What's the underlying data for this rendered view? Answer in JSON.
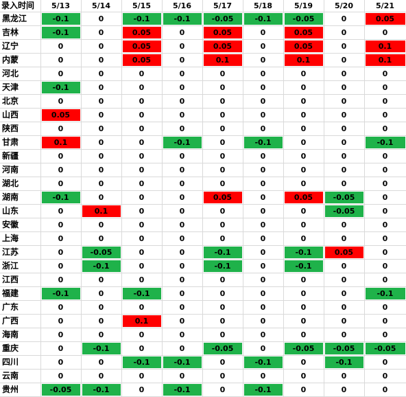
{
  "header": {
    "corner": "录入时间",
    "dates": [
      "5/13",
      "5/14",
      "5/15",
      "5/16",
      "5/17",
      "5/18",
      "5/19",
      "5/20",
      "5/21"
    ]
  },
  "colors": {
    "increase": "#ff0000",
    "decrease": "#1fb24a"
  },
  "rows": [
    {
      "region": "黑龙江",
      "values": [
        "-0.1",
        "0",
        "-0.1",
        "-0.1",
        "-0.05",
        "-0.1",
        "-0.05",
        "0",
        "0.05"
      ]
    },
    {
      "region": "吉林",
      "values": [
        "-0.1",
        "0",
        "0.05",
        "0",
        "0.05",
        "0",
        "0.05",
        "0",
        "0"
      ]
    },
    {
      "region": "辽宁",
      "values": [
        "0",
        "0",
        "0.05",
        "0",
        "0.05",
        "0",
        "0.05",
        "0",
        "0.1"
      ]
    },
    {
      "region": "内蒙",
      "values": [
        "0",
        "0",
        "0.05",
        "0",
        "0.1",
        "0",
        "0.1",
        "0",
        "0.1"
      ]
    },
    {
      "region": "河北",
      "values": [
        "0",
        "0",
        "0",
        "0",
        "0",
        "0",
        "0",
        "0",
        "0"
      ]
    },
    {
      "region": "天津",
      "values": [
        "-0.1",
        "0",
        "0",
        "0",
        "0",
        "0",
        "0",
        "0",
        "0"
      ]
    },
    {
      "region": "北京",
      "values": [
        "0",
        "0",
        "0",
        "0",
        "0",
        "0",
        "0",
        "0",
        "0"
      ]
    },
    {
      "region": "山西",
      "values": [
        "0.05",
        "0",
        "0",
        "0",
        "0",
        "0",
        "0",
        "0",
        "0"
      ]
    },
    {
      "region": "陕西",
      "values": [
        "0",
        "0",
        "0",
        "0",
        "0",
        "0",
        "0",
        "0",
        "0"
      ]
    },
    {
      "region": "甘肃",
      "values": [
        "0.1",
        "0",
        "0",
        "-0.1",
        "0",
        "-0.1",
        "0",
        "0",
        "-0.1"
      ]
    },
    {
      "region": "新疆",
      "values": [
        "0",
        "0",
        "0",
        "0",
        "0",
        "0",
        "0",
        "0",
        "0"
      ]
    },
    {
      "region": "河南",
      "values": [
        "0",
        "0",
        "0",
        "0",
        "0",
        "0",
        "0",
        "0",
        "0"
      ]
    },
    {
      "region": "湖北",
      "values": [
        "0",
        "0",
        "0",
        "0",
        "0",
        "0",
        "0",
        "0",
        "0"
      ]
    },
    {
      "region": "湖南",
      "values": [
        "-0.1",
        "0",
        "0",
        "0",
        "0.05",
        "0",
        "0.05",
        "-0.05",
        "0"
      ]
    },
    {
      "region": "山东",
      "values": [
        "0",
        "0.1",
        "0",
        "0",
        "0",
        "0",
        "0",
        "-0.05",
        "0"
      ]
    },
    {
      "region": "安徽",
      "values": [
        "0",
        "0",
        "0",
        "0",
        "0",
        "0",
        "0",
        "0",
        "0"
      ]
    },
    {
      "region": "上海",
      "values": [
        "0",
        "0",
        "0",
        "0",
        "0",
        "0",
        "0",
        "0",
        "0"
      ]
    },
    {
      "region": "江苏",
      "values": [
        "0",
        "-0.05",
        "0",
        "0",
        "-0.1",
        "0",
        "-0.1",
        "0.05",
        "0"
      ]
    },
    {
      "region": "浙江",
      "values": [
        "0",
        "-0.1",
        "0",
        "0",
        "-0.1",
        "0",
        "-0.1",
        "0",
        "0"
      ]
    },
    {
      "region": "江西",
      "values": [
        "0",
        "0",
        "0",
        "0",
        "0",
        "0",
        "0",
        "0",
        "0"
      ]
    },
    {
      "region": "福建",
      "values": [
        "-0.1",
        "0",
        "-0.1",
        "0",
        "0",
        "0",
        "0",
        "0",
        "-0.1"
      ]
    },
    {
      "region": "广东",
      "values": [
        "0",
        "0",
        "0",
        "0",
        "0",
        "0",
        "0",
        "0",
        "0"
      ]
    },
    {
      "region": "广西",
      "values": [
        "0",
        "0",
        "0.1",
        "0",
        "0",
        "0",
        "0",
        "0",
        "0"
      ]
    },
    {
      "region": "海南",
      "values": [
        "0",
        "0",
        "0",
        "0",
        "0",
        "0",
        "0",
        "0",
        "0"
      ]
    },
    {
      "region": "重庆",
      "values": [
        "0",
        "-0.1",
        "0",
        "0",
        "-0.05",
        "0",
        "-0.05",
        "-0.05",
        "-0.05"
      ]
    },
    {
      "region": "四川",
      "values": [
        "0",
        "0",
        "-0.1",
        "-0.1",
        "0",
        "-0.1",
        "0",
        "-0.1",
        "0"
      ]
    },
    {
      "region": "云南",
      "values": [
        "0",
        "0",
        "0",
        "0",
        "0",
        "0",
        "0",
        "0",
        "0"
      ]
    },
    {
      "region": "贵州",
      "values": [
        "-0.05",
        "-0.1",
        "0",
        "-0.1",
        "0",
        "-0.1",
        "0",
        "0",
        "0"
      ]
    }
  ]
}
